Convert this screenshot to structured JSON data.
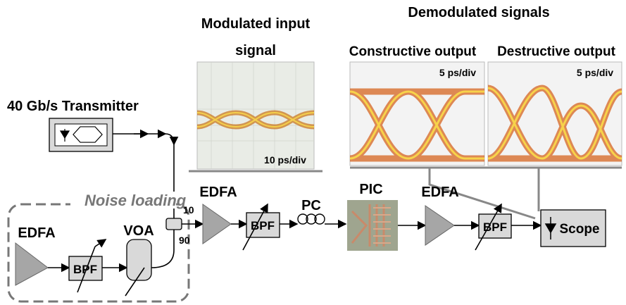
{
  "header": {
    "modulated_title": [
      "Modulated input",
      "signal"
    ],
    "demodulated_title": "Demodulated signals",
    "constructive_title": "Constructive output",
    "destructive_title": "Destructive output"
  },
  "scopes": {
    "input_scale": "10 ps/div",
    "constructive_scale": "5 ps/div",
    "destructive_scale": "5 ps/div"
  },
  "nodes": {
    "transmitter": "40  Gb/s Transmitter",
    "noise_loading": "Noise loading",
    "edfa_noise": "EDFA",
    "bpf_noise": "BPF",
    "voa": "VOA",
    "coupler_10": "10",
    "coupler_90": "90",
    "edfa_1": "EDFA",
    "bpf_1": "BPF",
    "pc": "PC",
    "pic": "PIC",
    "edfa_2": "EDFA",
    "bpf_2": "BPF",
    "scope": "Scope"
  }
}
